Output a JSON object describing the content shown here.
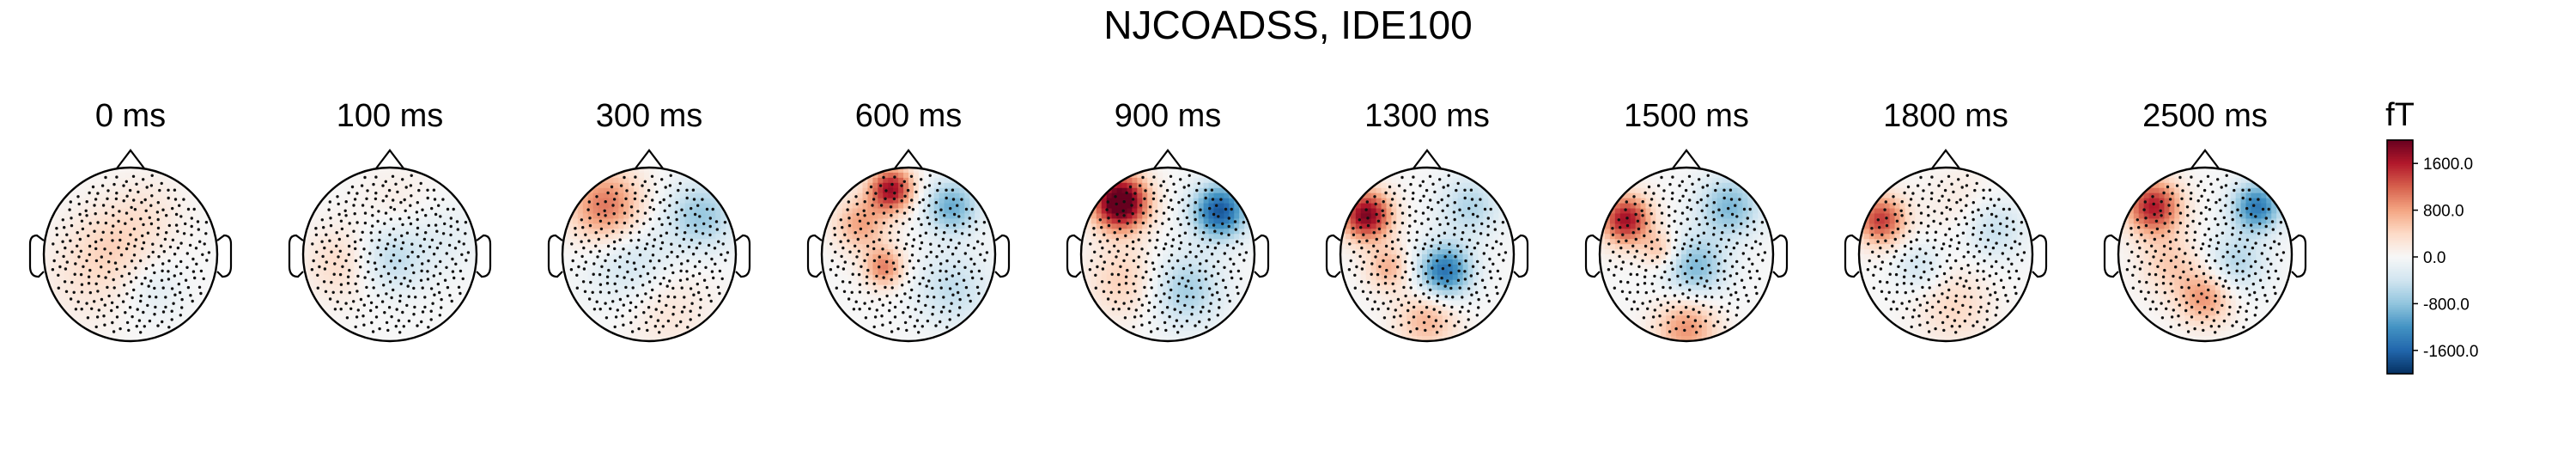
{
  "figure": {
    "title": "NJCOADSS, IDE100"
  },
  "chart_data": {
    "type": "heatmap",
    "title": "NJCOADSS, IDE100",
    "panels": [
      {
        "label": "0 ms",
        "time_ms": 0,
        "sources": [
          {
            "x": -0.2,
            "y": 0.1,
            "v": 350,
            "s": 0.35
          },
          {
            "x": 0.25,
            "y": -0.4,
            "v": -250,
            "s": 0.25
          },
          {
            "x": 0.2,
            "y": 0.5,
            "v": 200,
            "s": 0.3
          },
          {
            "x": -0.5,
            "y": -0.3,
            "v": 200,
            "s": 0.4
          }
        ]
      },
      {
        "label": "100 ms",
        "time_ms": 100,
        "sources": [
          {
            "x": 0.0,
            "y": -0.05,
            "v": -550,
            "s": 0.28
          },
          {
            "x": -0.55,
            "y": -0.1,
            "v": 400,
            "s": 0.3
          },
          {
            "x": 0.6,
            "y": 0.2,
            "v": -200,
            "s": 0.3
          },
          {
            "x": 0.1,
            "y": 0.6,
            "v": 150,
            "s": 0.3
          }
        ]
      },
      {
        "label": "300 ms",
        "time_ms": 300,
        "sources": [
          {
            "x": -0.5,
            "y": 0.55,
            "v": 1100,
            "s": 0.3
          },
          {
            "x": 0.6,
            "y": 0.45,
            "v": -750,
            "s": 0.28
          },
          {
            "x": -0.2,
            "y": -0.1,
            "v": -450,
            "s": 0.35
          },
          {
            "x": 0.2,
            "y": -0.6,
            "v": 300,
            "s": 0.35
          }
        ]
      },
      {
        "label": "600 ms",
        "time_ms": 600,
        "sources": [
          {
            "x": -0.2,
            "y": 0.75,
            "v": 1700,
            "s": 0.18
          },
          {
            "x": -0.55,
            "y": 0.35,
            "v": 800,
            "s": 0.22
          },
          {
            "x": -0.28,
            "y": -0.15,
            "v": 1000,
            "s": 0.16
          },
          {
            "x": 0.5,
            "y": 0.55,
            "v": -1000,
            "s": 0.22
          },
          {
            "x": 0.5,
            "y": -0.4,
            "v": -500,
            "s": 0.3
          }
        ]
      },
      {
        "label": "900 ms",
        "time_ms": 900,
        "sources": [
          {
            "x": -0.55,
            "y": 0.6,
            "v": 2400,
            "s": 0.22
          },
          {
            "x": 0.6,
            "y": 0.5,
            "v": -1700,
            "s": 0.22
          },
          {
            "x": 0.2,
            "y": -0.4,
            "v": -700,
            "s": 0.3
          },
          {
            "x": -0.5,
            "y": -0.3,
            "v": 500,
            "s": 0.3
          }
        ]
      },
      {
        "label": "1300 ms",
        "time_ms": 1300,
        "sources": [
          {
            "x": -0.7,
            "y": 0.45,
            "v": 1900,
            "s": 0.2
          },
          {
            "x": 0.2,
            "y": -0.2,
            "v": -1500,
            "s": 0.22
          },
          {
            "x": -0.45,
            "y": -0.15,
            "v": 700,
            "s": 0.18
          },
          {
            "x": 0.0,
            "y": -0.75,
            "v": 700,
            "s": 0.25
          },
          {
            "x": 0.5,
            "y": 0.55,
            "v": -600,
            "s": 0.25
          }
        ]
      },
      {
        "label": "1500 ms",
        "time_ms": 1500,
        "sources": [
          {
            "x": -0.7,
            "y": 0.4,
            "v": 1700,
            "s": 0.2
          },
          {
            "x": 0.5,
            "y": 0.55,
            "v": -900,
            "s": 0.25
          },
          {
            "x": 0.1,
            "y": -0.15,
            "v": -900,
            "s": 0.25
          },
          {
            "x": -0.3,
            "y": 0.05,
            "v": 600,
            "s": 0.15
          },
          {
            "x": 0.0,
            "y": -0.85,
            "v": 900,
            "s": 0.25
          }
        ]
      },
      {
        "label": "1800 ms",
        "time_ms": 1800,
        "sources": [
          {
            "x": -0.75,
            "y": 0.4,
            "v": 1400,
            "s": 0.2
          },
          {
            "x": 0.55,
            "y": 0.3,
            "v": -500,
            "s": 0.25
          },
          {
            "x": -0.3,
            "y": -0.15,
            "v": -400,
            "s": 0.2
          },
          {
            "x": 0.1,
            "y": -0.6,
            "v": 400,
            "s": 0.3
          },
          {
            "x": 0.2,
            "y": 0.6,
            "v": 200,
            "s": 0.3
          }
        ]
      },
      {
        "label": "2500 ms",
        "time_ms": 2500,
        "sources": [
          {
            "x": -0.6,
            "y": 0.55,
            "v": 1600,
            "s": 0.22
          },
          {
            "x": 0.6,
            "y": 0.55,
            "v": -1400,
            "s": 0.2
          },
          {
            "x": 0.0,
            "y": -0.5,
            "v": 900,
            "s": 0.22
          },
          {
            "x": 0.35,
            "y": -0.1,
            "v": -600,
            "s": 0.25
          },
          {
            "x": -0.4,
            "y": -0.1,
            "v": 500,
            "s": 0.25
          }
        ]
      }
    ],
    "colorbar": {
      "unit": "fT",
      "min": -2000,
      "max": 2000,
      "ticks": [
        1600,
        800,
        0,
        -800,
        -1600
      ],
      "tick_labels": [
        "1600.0",
        "800.0",
        "0.0",
        "-800.0",
        "-1600.0"
      ],
      "colormap": [
        "#053061",
        "#2166ac",
        "#4393c3",
        "#92c5de",
        "#d1e5f0",
        "#f7f7f7",
        "#fddbc7",
        "#f4a582",
        "#d6604d",
        "#b2182b",
        "#67001f"
      ]
    }
  }
}
